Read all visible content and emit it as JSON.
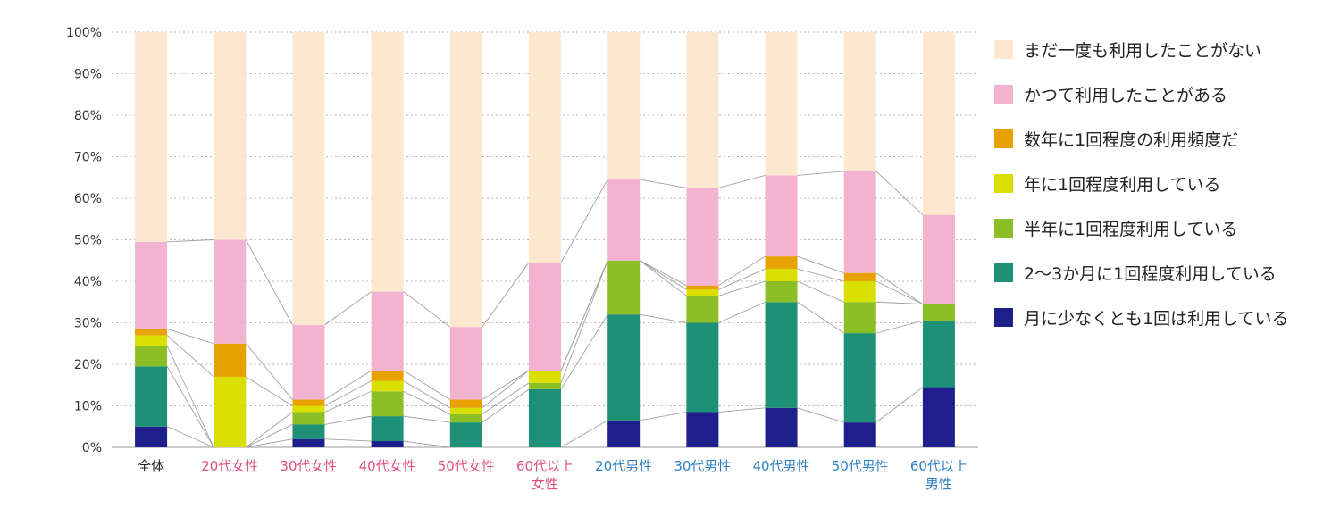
{
  "chart_data": {
    "type": "bar",
    "stacked": true,
    "yaxis": {
      "ticks": [
        "0%",
        "10%",
        "20%",
        "30%",
        "40%",
        "50%",
        "60%",
        "70%",
        "80%",
        "90%",
        "100%"
      ],
      "ylim": [
        0,
        100
      ]
    },
    "categories": [
      {
        "lines": [
          "全体"
        ],
        "color": "#222222"
      },
      {
        "lines": [
          "20代女性"
        ],
        "color": "#e0507e"
      },
      {
        "lines": [
          "30代女性"
        ],
        "color": "#e0507e"
      },
      {
        "lines": [
          "40代女性"
        ],
        "color": "#e0507e"
      },
      {
        "lines": [
          "50代女性"
        ],
        "color": "#e0507e"
      },
      {
        "lines": [
          "60代以上",
          "女性"
        ],
        "color": "#e0507e"
      },
      {
        "lines": [
          "20代男性"
        ],
        "color": "#2d7fc0"
      },
      {
        "lines": [
          "30代男性"
        ],
        "color": "#2d7fc0"
      },
      {
        "lines": [
          "40代男性"
        ],
        "color": "#2d7fc0"
      },
      {
        "lines": [
          "50代男性"
        ],
        "color": "#2d7fc0"
      },
      {
        "lines": [
          "60代以上",
          "男性"
        ],
        "color": "#2d7fc0"
      }
    ],
    "series": [
      {
        "name": "月に少なくとも1回は利用している",
        "color": "#1f1f8c",
        "values": [
          5,
          0,
          2,
          1.5,
          0,
          0,
          6.5,
          8.5,
          9.5,
          6,
          14.5
        ]
      },
      {
        "name": "2〜3か月に1回程度利用している",
        "color": "#1e9078",
        "values": [
          14.5,
          0,
          3.5,
          6,
          6,
          14,
          25.5,
          21.5,
          25.5,
          21.5,
          16
        ]
      },
      {
        "name": "半年に1回程度利用している",
        "color": "#8cbf26",
        "values": [
          5,
          0,
          3,
          6,
          2,
          1.5,
          13,
          6.5,
          5,
          7.5,
          4
        ]
      },
      {
        "name": "年に1回程度利用している",
        "color": "#d9df00",
        "values": [
          2.5,
          17,
          1.5,
          2.5,
          1.5,
          3,
          0,
          1.5,
          3,
          5,
          0
        ]
      },
      {
        "name": "数年に1回程度の利用頻度だ",
        "color": "#e7a100",
        "values": [
          1.5,
          8,
          1.5,
          2.5,
          2,
          0,
          0,
          1,
          3,
          2,
          0
        ]
      },
      {
        "name": "かつて利用したことがある",
        "color": "#f2b3d1",
        "values": [
          21,
          25,
          18,
          19,
          17.5,
          26,
          19.5,
          23.5,
          19.5,
          24.5,
          21.5
        ]
      },
      {
        "name": "まだ一度も利用したことがない",
        "color": "#fde8cf",
        "values": [
          50.5,
          50,
          70.5,
          62.5,
          71,
          55.5,
          35.5,
          37.5,
          34.5,
          33.5,
          44
        ]
      }
    ],
    "legend_order": [
      6,
      5,
      4,
      3,
      2,
      1,
      0
    ],
    "legend_position": "right"
  }
}
